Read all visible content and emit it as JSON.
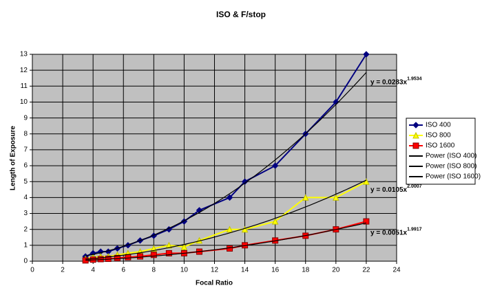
{
  "chart_data": {
    "type": "scatter",
    "title": "ISO & F/stop",
    "x_label": "Focal Ratio",
    "y_label": "Length of Exposure",
    "x": [
      3.5,
      4,
      4.5,
      5,
      5.6,
      6.3,
      7.1,
      8,
      9,
      10,
      11,
      13,
      14,
      16,
      18,
      20,
      22
    ],
    "series": [
      {
        "name": "ISO 400",
        "color": "#000080",
        "marker": "diamond",
        "values": [
          0.3,
          0.5,
          0.6,
          0.6,
          0.8,
          1,
          1.3,
          1.6,
          2,
          2.5,
          3.2,
          4,
          5,
          6,
          8,
          10,
          13
        ]
      },
      {
        "name": "ISO 800",
        "color": "#ffff00",
        "marker": "triangle",
        "values": [
          0.15,
          0.25,
          0.3,
          0.3,
          0.4,
          0.5,
          0.6,
          0.8,
          1,
          0.9,
          1.3,
          2,
          2,
          2.5,
          4,
          4,
          5
        ]
      },
      {
        "name": "ISO 1600",
        "color": "#ff0000",
        "marker": "square",
        "values": [
          0.05,
          0.1,
          0.13,
          0.15,
          0.2,
          0.25,
          0.3,
          0.4,
          0.5,
          0.5,
          0.6,
          0.8,
          1,
          1.3,
          1.6,
          2,
          2.5
        ]
      }
    ],
    "trendlines": [
      {
        "name": "Power (ISO 400)",
        "color": "#000000",
        "coefficient": 0.0283,
        "exponent": 1.9534,
        "equation": "y = 0.0283x"
      },
      {
        "name": "Power (ISO 800)",
        "color": "#000000",
        "coefficient": 0.0105,
        "exponent": 2.0007,
        "equation": "y = 0.0105x"
      },
      {
        "name": "Power (ISO 1600)",
        "color": "#000000",
        "coefficient": 0.0051,
        "exponent": 1.9917,
        "equation": "y = 0.0051x"
      }
    ],
    "xlim": [
      0,
      24
    ],
    "xticks": [
      0,
      2,
      4,
      6,
      8,
      10,
      12,
      14,
      16,
      18,
      20,
      22,
      24
    ],
    "ylim": [
      0,
      13
    ],
    "yticks": [
      0,
      1,
      2,
      3,
      4,
      5,
      6,
      7,
      8,
      9,
      10,
      11,
      12,
      13
    ],
    "grid": true,
    "legend": "right",
    "plot_background": "#c0c0c0"
  }
}
